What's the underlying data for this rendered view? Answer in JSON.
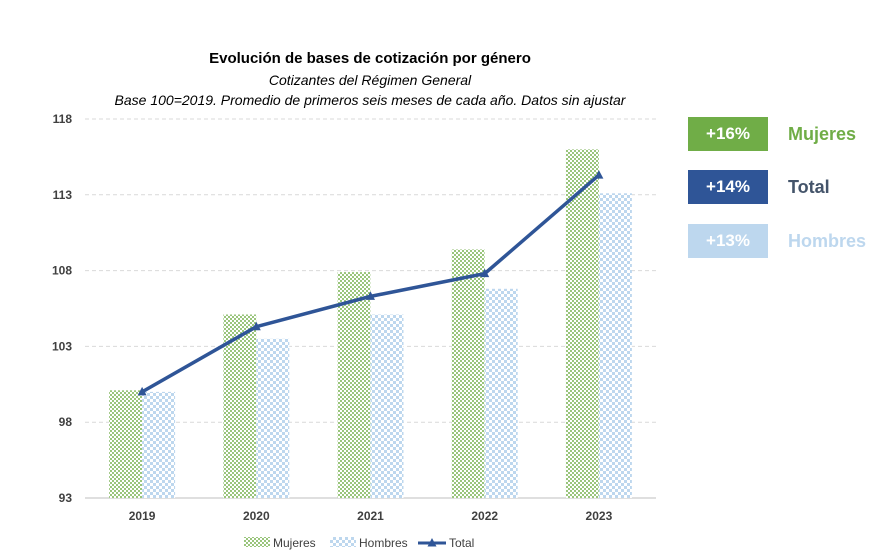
{
  "chart_data": {
    "type": "bar",
    "title": "Evolución de bases de cotización por género",
    "subtitle": "Cotizantes del Régimen General",
    "subtitle2": "Base 100=2019. Promedio de primeros seis meses de cada año. Datos sin ajustar",
    "categories": [
      "2019",
      "2020",
      "2021",
      "2022",
      "2023"
    ],
    "series": [
      {
        "name": "Mujeres",
        "kind": "bar",
        "color": "#70ad47",
        "values": [
          100.1,
          105.1,
          107.9,
          109.4,
          116.0
        ]
      },
      {
        "name": "Hombres",
        "kind": "bar",
        "color": "#bdd7ee",
        "values": [
          100.0,
          103.5,
          105.1,
          106.8,
          113.1
        ]
      },
      {
        "name": "Total",
        "kind": "line",
        "color": "#2f5597",
        "values": [
          100.0,
          104.3,
          106.3,
          107.8,
          114.3
        ]
      }
    ],
    "ylim": [
      93,
      118
    ],
    "yticks": [
      "93",
      "98",
      "103",
      "108",
      "113",
      "118"
    ],
    "grid": true,
    "legend_position": "bottom"
  },
  "summary": [
    {
      "value": "+16%",
      "label": "Mujeres",
      "box_color": "#70ad47",
      "text_color": "#70ad47"
    },
    {
      "value": "+14%",
      "label": "Total",
      "box_color": "#2f5597",
      "text_color": "#44546a"
    },
    {
      "value": "+13%",
      "label": "Hombres",
      "box_color": "#bdd7ee",
      "text_color": "#bdd7ee"
    }
  ]
}
